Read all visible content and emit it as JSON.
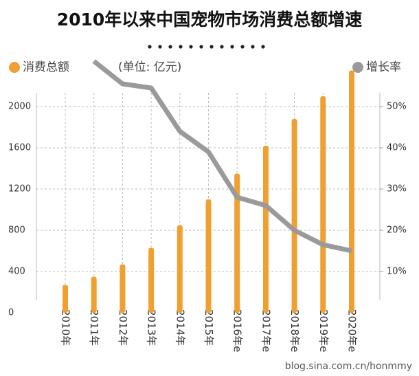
{
  "chart_data": {
    "type": "bar",
    "title": "2010年以来中国宠物市场消费总额增速",
    "unit_label": "(单位: 亿元)",
    "watermark": "blog.sina.com.cn/honmmy",
    "categories": [
      "2010年",
      "2011年",
      "2012年",
      "2013年",
      "2014年",
      "2015年",
      "2016年e",
      "2017年e",
      "2018年e",
      "2019年e",
      "2020年e"
    ],
    "series": [
      {
        "name": "消费总额",
        "color": "#f0a030",
        "type": "bar",
        "values": [
          270,
          350,
          470,
          630,
          850,
          1100,
          1350,
          1620,
          1880,
          2100,
          2350
        ]
      },
      {
        "name": "增长率",
        "color": "#9a9a9a",
        "type": "line",
        "axis": "y2",
        "values": [
          null,
          61,
          55.5,
          54.5,
          44,
          39,
          28,
          26,
          20,
          16.5,
          15
        ]
      }
    ],
    "ylim": [
      0,
      2500
    ],
    "yticks": [
      0,
      400,
      800,
      1200,
      1600,
      2000
    ],
    "y2lim": [
      0,
      62.5
    ],
    "y2ticks": [
      {
        "value": 10,
        "label": "10%"
      },
      {
        "value": 20,
        "label": "20%"
      },
      {
        "value": 30,
        "label": "30%"
      },
      {
        "value": 40,
        "label": "40%"
      },
      {
        "value": 50,
        "label": "50%"
      }
    ],
    "grid": true
  }
}
